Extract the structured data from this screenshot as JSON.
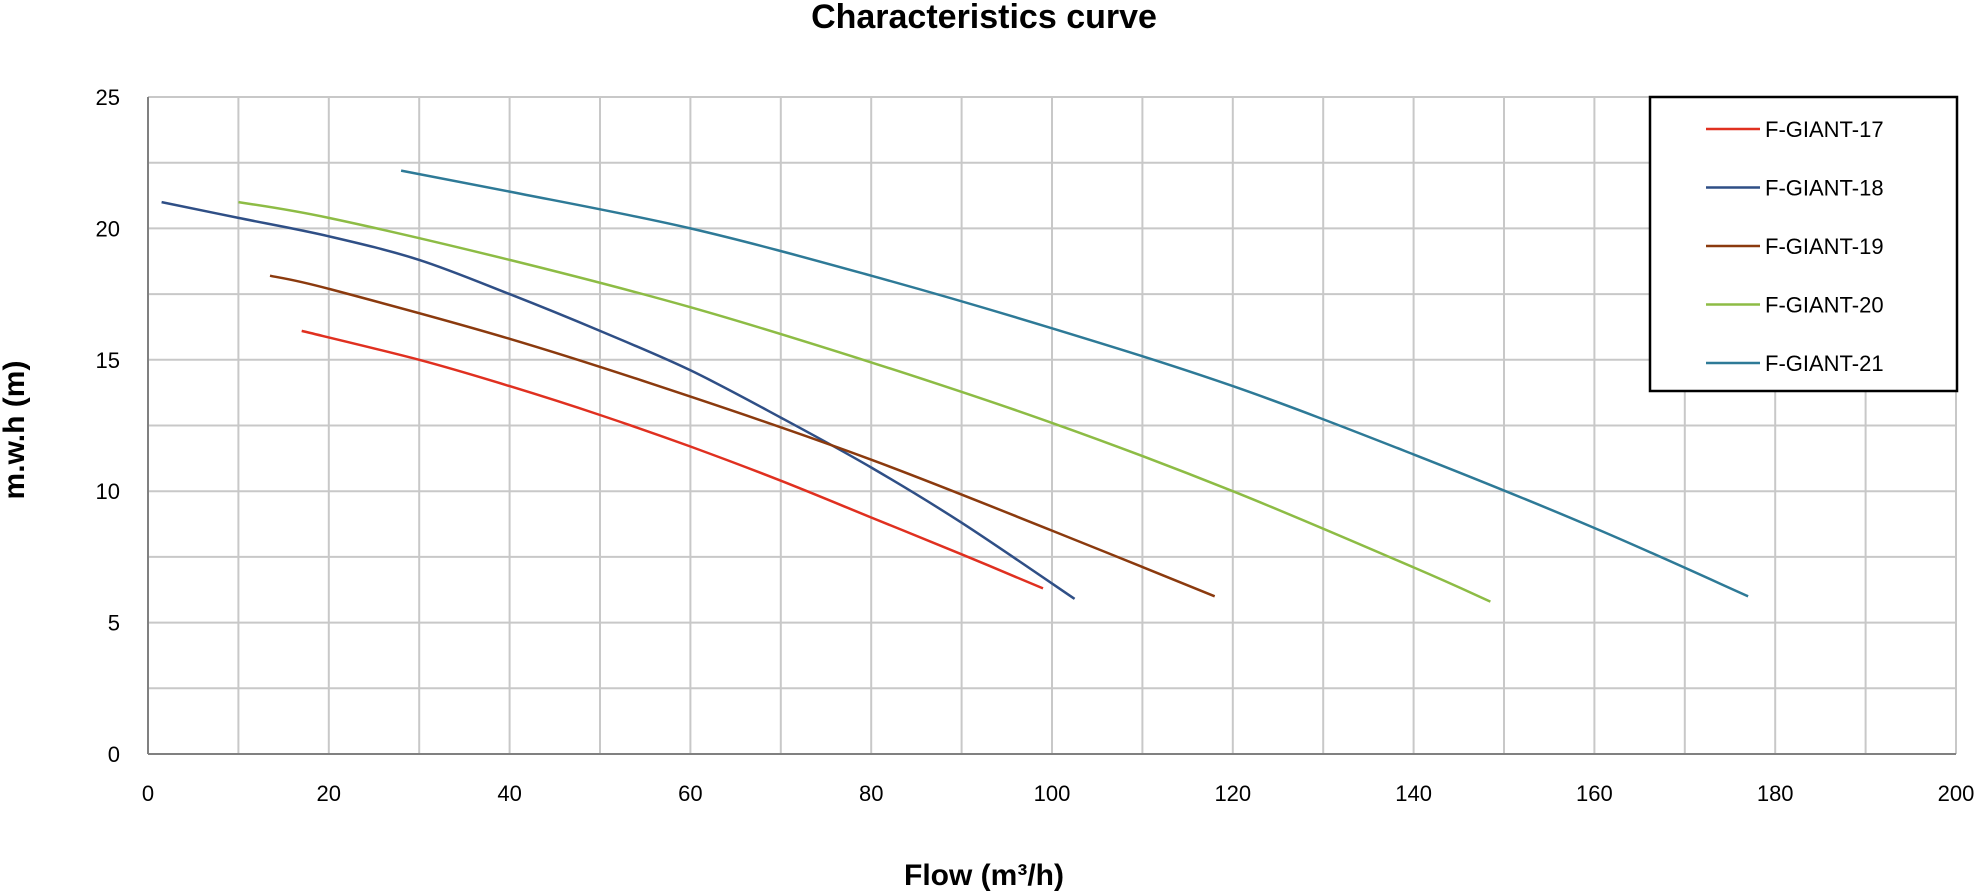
{
  "chart_data": {
    "type": "line",
    "title": "Characteristics curve",
    "xlabel": "Flow",
    "xunit": "(m³/h)",
    "ylabel": "m.w.h (m)",
    "xlim": [
      0,
      200
    ],
    "ylim": [
      0,
      25
    ],
    "xticks": [
      0,
      20,
      40,
      60,
      80,
      100,
      120,
      140,
      160,
      180,
      200
    ],
    "xtick_labels": [
      "0",
      "20",
      "40",
      "60",
      "80",
      "100",
      "120",
      "140",
      "160",
      "180",
      "200"
    ],
    "yticks": [
      0,
      5,
      10,
      15,
      20,
      25
    ],
    "ytick_labels": [
      "0",
      "5",
      "10",
      "15",
      "20",
      "25"
    ],
    "x_grid_step": 10,
    "y_grid_step": 2.5,
    "grid": true,
    "legend_position": "top-right",
    "series": [
      {
        "name": "F-GIANT-17",
        "color": "#e03020",
        "x": [
          17,
          30,
          40,
          50,
          60,
          70,
          80,
          90,
          99
        ],
        "y": [
          16.1,
          15.0,
          14.0,
          12.9,
          11.7,
          10.4,
          9.0,
          7.6,
          6.3
        ]
      },
      {
        "name": "F-GIANT-18",
        "color": "#2f4f86",
        "x": [
          1.5,
          10,
          20,
          30,
          40,
          50,
          60,
          70,
          80,
          90,
          102.5
        ],
        "y": [
          21.0,
          20.4,
          19.7,
          18.8,
          17.5,
          16.1,
          14.6,
          12.8,
          10.9,
          8.8,
          5.9
        ]
      },
      {
        "name": "F-GIANT-19",
        "color": "#8b3a0e",
        "x": [
          13.5,
          20,
          40,
          60,
          80,
          100,
          118
        ],
        "y": [
          18.2,
          17.7,
          15.8,
          13.6,
          11.2,
          8.5,
          6.0
        ]
      },
      {
        "name": "F-GIANT-20",
        "color": "#8dbc45",
        "x": [
          10,
          20,
          40,
          60,
          80,
          100,
          120,
          140,
          148.5
        ],
        "y": [
          21.0,
          20.4,
          18.8,
          17.0,
          14.9,
          12.6,
          10.0,
          7.1,
          5.8
        ]
      },
      {
        "name": "F-GIANT-21",
        "color": "#2e7a97",
        "x": [
          28,
          40,
          60,
          80,
          100,
          120,
          140,
          160,
          177
        ],
        "y": [
          22.2,
          21.4,
          20.0,
          18.2,
          16.2,
          14.0,
          11.4,
          8.6,
          6.0
        ]
      }
    ]
  }
}
